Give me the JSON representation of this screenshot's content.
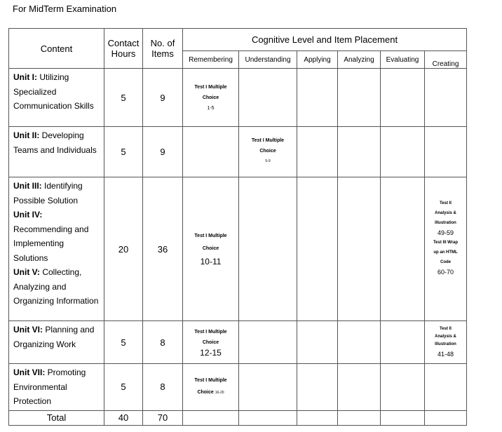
{
  "title": "For MidTerm Examination",
  "headers": {
    "content": "Content",
    "contact_hours": "Contact Hours",
    "items": "No. of Items",
    "cognitive": "Cognitive Level and Item Placement",
    "levels": [
      "Remembering",
      "Understanding",
      "Applying",
      "Analyzing",
      "Evaluating",
      "Creating"
    ]
  },
  "rows": [
    {
      "label_bold": "Unit I:",
      "label": " Utilizing Specialized Communication Skills",
      "hours": "5",
      "items": "9",
      "remembering": {
        "t1": "Test I Multiple",
        "t2": "Choice",
        "range": "1-5"
      }
    },
    {
      "label_bold": "Unit II:",
      "label": " Developing Teams and Individuals",
      "hours": "5",
      "items": "9",
      "understanding": {
        "t1": "Test I Multiple",
        "t2": "Choice",
        "range": "5-9"
      }
    },
    {
      "parts": [
        {
          "b": "Unit III:",
          "t": " Identifying Possible Solution"
        },
        {
          "b": "Unit IV:",
          "t": " Recommending and Implementing Solutions"
        },
        {
          "b": "Unit V:",
          "t": " Collecting, Analyzing and Organizing Information"
        }
      ],
      "hours": "20",
      "items": "36",
      "remembering": {
        "t1": "Test I Multiple",
        "t2": "Choice",
        "range": "10-11"
      },
      "creating": {
        "a1": "Test II",
        "a2": "Analysis &",
        "a3": "Illustration",
        "r1": "49-59",
        "b1": "Test III Wrap",
        "b2": "up an HTML",
        "b3": "Code",
        "r2": "60-70"
      }
    },
    {
      "label_bold": "Unit VI:",
      "label": " Planning and Organizing Work",
      "hours": "5",
      "items": "8",
      "remembering": {
        "t1": "Test I Multiple",
        "t2": "Choice",
        "range": "12-15"
      },
      "creating": {
        "a1": "Test II",
        "a2": "Analysis &",
        "a3": "Illustration",
        "r1": "41-48"
      }
    },
    {
      "label_bold": "Unit VII:",
      "label": " Promoting Environmental Protection",
      "hours": "5",
      "items": "8",
      "remembering": {
        "t1": "Test I Multiple",
        "t2": "Choice",
        "range": "16-20"
      }
    }
  ],
  "total": {
    "label": "Total",
    "hours": "40",
    "items": "70"
  }
}
